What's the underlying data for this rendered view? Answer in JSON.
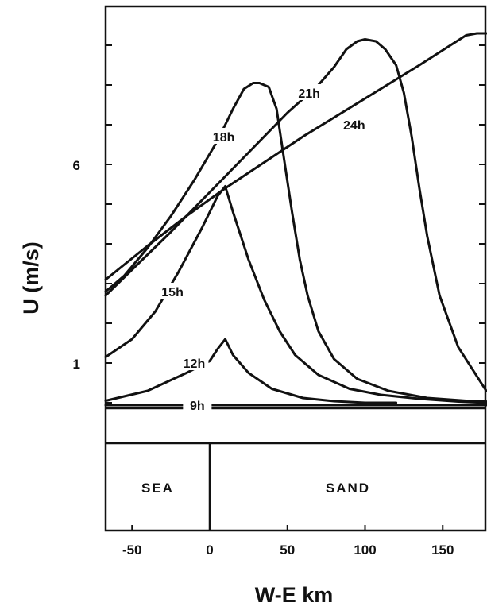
{
  "chart_data": {
    "type": "line",
    "title": "",
    "xlabel": "W-E km",
    "ylabel": "U (m/s)",
    "xlim": [
      -67,
      178
    ],
    "ylim": [
      -4.2,
      10.2
    ],
    "x_ticks": [
      -50,
      0,
      50,
      100,
      150
    ],
    "x_tick_labels": [
      "-50",
      "0",
      "50",
      "100",
      "150"
    ],
    "y_ticks": [
      1,
      6
    ],
    "y_tick_labels": [
      "1",
      "6"
    ],
    "grid": false,
    "surface": {
      "boundary_x": 0,
      "regions": [
        {
          "name": "SEA",
          "from": -67,
          "to": 0
        },
        {
          "name": "SAND",
          "from": 0,
          "to": 178
        }
      ]
    },
    "series": [
      {
        "name": "9h",
        "label_at": [
          -8,
          -0.1
        ],
        "x": [
          -67,
          178
        ],
        "y": [
          0,
          0
        ]
      },
      {
        "name": "12h",
        "label_at": [
          -10,
          1.0
        ],
        "x": [
          -67,
          -40,
          -15,
          0,
          5,
          10,
          15,
          25,
          40,
          60,
          80,
          100,
          120
        ],
        "y": [
          0.05,
          0.3,
          0.75,
          1.05,
          1.35,
          1.6,
          1.2,
          0.75,
          0.35,
          0.12,
          0.04,
          0.0,
          0.0
        ]
      },
      {
        "name": "15h",
        "label_at": [
          -24,
          2.8
        ],
        "x": [
          -67,
          -50,
          -35,
          -20,
          -5,
          5,
          10,
          15,
          25,
          35,
          45,
          55,
          70,
          90,
          110,
          135,
          160,
          178
        ],
        "y": [
          1.15,
          1.6,
          2.3,
          3.3,
          4.4,
          5.2,
          5.45,
          4.8,
          3.6,
          2.6,
          1.8,
          1.2,
          0.7,
          0.35,
          0.2,
          0.1,
          0.03,
          0.0
        ]
      },
      {
        "name": "18h",
        "label_at": [
          9,
          6.7
        ],
        "x": [
          -67,
          -55,
          -40,
          -25,
          -10,
          5,
          15,
          22,
          28,
          32,
          38,
          43,
          48,
          53,
          58,
          63,
          70,
          80,
          95,
          115,
          140,
          165,
          178
        ],
        "y": [
          2.8,
          3.2,
          3.9,
          4.7,
          5.6,
          6.6,
          7.4,
          7.9,
          8.05,
          8.05,
          7.95,
          7.4,
          6.1,
          4.8,
          3.6,
          2.7,
          1.8,
          1.1,
          0.6,
          0.3,
          0.12,
          0.05,
          0.03
        ]
      },
      {
        "name": "21h",
        "label_at": [
          64,
          7.8
        ],
        "x": [
          -67,
          -50,
          -25,
          0,
          25,
          50,
          70,
          80,
          88,
          95,
          100,
          107,
          113,
          120,
          125,
          130,
          135,
          140,
          148,
          160,
          178
        ],
        "y": [
          2.7,
          3.35,
          4.3,
          5.3,
          6.3,
          7.3,
          8.0,
          8.45,
          8.9,
          9.1,
          9.15,
          9.1,
          8.9,
          8.5,
          7.8,
          6.7,
          5.4,
          4.2,
          2.7,
          1.4,
          0.3
        ]
      },
      {
        "name": "24h",
        "label_at": [
          93,
          7.0
        ],
        "x": [
          -67,
          -40,
          -15,
          10,
          35,
          60,
          85,
          110,
          135,
          155,
          165,
          172,
          178
        ],
        "y": [
          3.1,
          3.95,
          4.7,
          5.4,
          6.05,
          6.7,
          7.3,
          7.9,
          8.5,
          9.0,
          9.25,
          9.3,
          9.3
        ]
      }
    ]
  }
}
